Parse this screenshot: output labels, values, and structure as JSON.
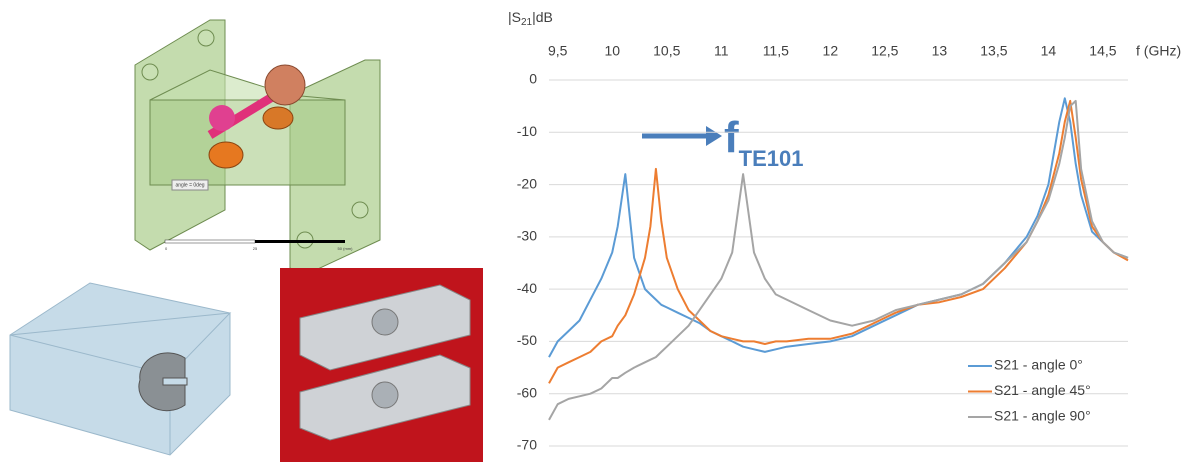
{
  "images": {
    "cad_label": "angle = 0deg",
    "scale_labels": [
      "0",
      "25",
      "50 (mm)"
    ]
  },
  "chart_data": {
    "type": "line",
    "y_label": {
      "prefix": "|S",
      "subscript": "21",
      "suffix": "|dB"
    },
    "x_label": "f (GHz)",
    "annotation": {
      "text": "f",
      "subscript": "TE101"
    },
    "x": [
      9.42,
      9.5,
      9.6,
      9.7,
      9.8,
      9.9,
      10.0,
      10.05,
      10.12,
      10.2,
      10.3,
      10.35,
      10.4,
      10.45,
      10.5,
      10.6,
      10.7,
      10.8,
      10.9,
      11.0,
      11.1,
      11.2,
      11.3,
      11.4,
      11.5,
      11.6,
      11.8,
      12.0,
      12.2,
      12.4,
      12.6,
      12.8,
      13.0,
      13.2,
      13.4,
      13.6,
      13.8,
      13.9,
      14.0,
      14.1,
      14.15,
      14.2,
      14.25,
      14.3,
      14.4,
      14.5,
      14.6,
      14.73
    ],
    "series": [
      {
        "name": "S21 - angle 0°",
        "color": "#5b9bd5",
        "values": [
          -53,
          -50,
          -48,
          -46,
          -42,
          -38,
          -33,
          -28,
          -18,
          -34,
          -40,
          -41,
          -42,
          -43,
          -43.5,
          -44.5,
          -45.5,
          -46.5,
          -48,
          -49,
          -50,
          -51,
          -51.5,
          -52,
          -51.5,
          -51,
          -50.5,
          -50,
          -49,
          -47,
          -45,
          -43,
          -42,
          -41,
          -39,
          -35,
          -30,
          -26,
          -20,
          -8,
          -3.5,
          -8,
          -16,
          -22,
          -29,
          -31,
          -33,
          -34
        ]
      },
      {
        "name": "S21 - angle 45°",
        "color": "#ed7d31",
        "values": [
          -58,
          -55,
          -54,
          -53,
          -52,
          -50,
          -49,
          -47,
          -45,
          -41,
          -34,
          -28,
          -17,
          -27,
          -34,
          -40,
          -44,
          -46,
          -48,
          -49,
          -49.5,
          -50,
          -50,
          -50.5,
          -50,
          -50,
          -49.5,
          -49.5,
          -48.5,
          -46.5,
          -44.5,
          -43,
          -42.5,
          -41.5,
          -40,
          -36,
          -31,
          -27,
          -22,
          -14,
          -8,
          -4,
          -11,
          -19,
          -28,
          -31,
          -33,
          -34.5
        ]
      },
      {
        "name": "S21 - angle 90°",
        "color": "#a5a5a5",
        "values": [
          -65,
          -62,
          -61,
          -60.5,
          -60,
          -59,
          -57,
          -57,
          -56,
          -55,
          -54,
          -53.5,
          -53,
          -52,
          -51,
          -49,
          -47,
          -44,
          -41,
          -38,
          -33,
          -18,
          -33,
          -38,
          -41,
          -42,
          -44,
          -46,
          -47,
          -46,
          -44,
          -43,
          -42,
          -41,
          -39,
          -35,
          -31,
          -27,
          -23,
          -16,
          -11,
          -5,
          -4,
          -17,
          -27,
          -31,
          -33,
          -34
        ]
      }
    ],
    "xlim": [
      9.42,
      14.73
    ],
    "xticks": [
      {
        "value": 9.5,
        "label": "9,5"
      },
      10,
      {
        "value": 10.5,
        "label": "10,5"
      },
      11,
      {
        "value": 11.5,
        "label": "11,5"
      },
      12,
      {
        "value": 12.5,
        "label": "12,5"
      },
      13,
      {
        "value": 13.5,
        "label": "13,5"
      },
      14,
      {
        "value": 14.5,
        "label": "14,5"
      }
    ],
    "ylim": [
      -70,
      0
    ],
    "yticks": [
      0,
      -10,
      -20,
      -30,
      -40,
      -50,
      -60,
      -70
    ],
    "grid": true,
    "legend": "lower-right"
  }
}
